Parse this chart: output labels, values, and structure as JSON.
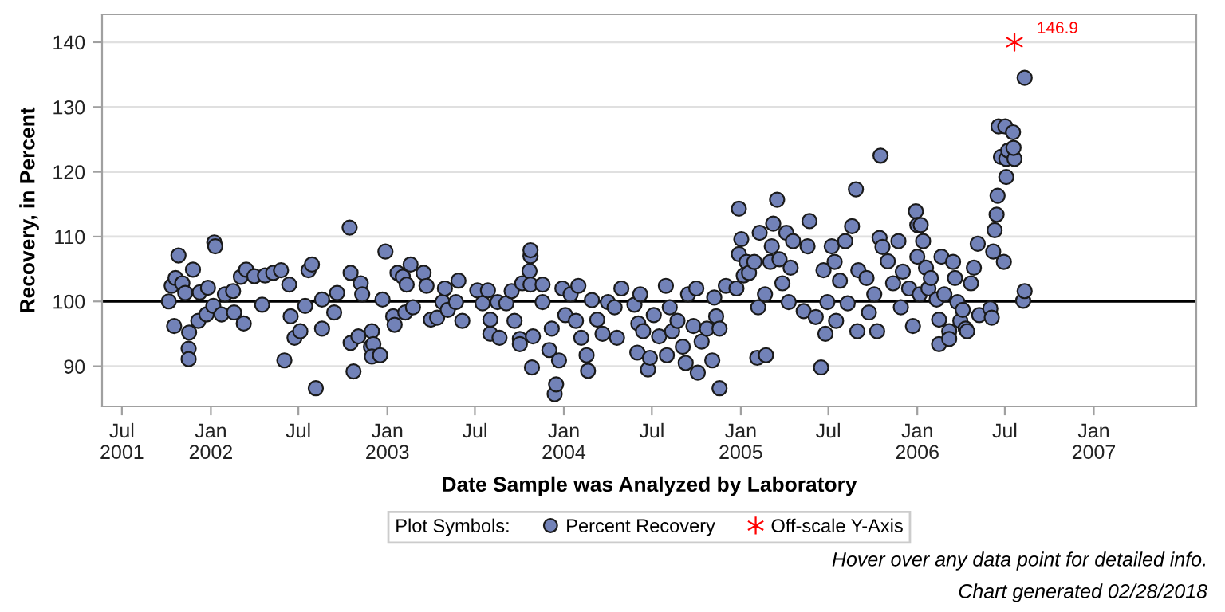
{
  "chart_data": {
    "type": "scatter",
    "xlabel": "Date Sample was Analyzed by Laboratory",
    "ylabel": "Recovery, in Percent",
    "legend_title": "Plot Symbols:",
    "xlim": [
      "2001-05-21",
      "2007-08-01"
    ],
    "ylim": [
      83.8,
      144.3
    ],
    "xticks": [
      {
        "value": "2001-07",
        "label": "Jul\n2001"
      },
      {
        "value": "2002-01",
        "label": "Jan\n2002"
      },
      {
        "value": "2002-07",
        "label": "Jul"
      },
      {
        "value": "2003-01",
        "label": "Jan\n2003"
      },
      {
        "value": "2003-07",
        "label": "Jul"
      },
      {
        "value": "2004-01",
        "label": "Jan\n2004"
      },
      {
        "value": "2004-07",
        "label": "Jul"
      },
      {
        "value": "2005-01",
        "label": "Jan\n2005"
      },
      {
        "value": "2005-07",
        "label": "Jul"
      },
      {
        "value": "2006-01",
        "label": "Jan\n2006"
      },
      {
        "value": "2006-07",
        "label": "Jul"
      },
      {
        "value": "2007-01",
        "label": "Jan\n2007"
      }
    ],
    "yticks": [
      90,
      100,
      110,
      120,
      130,
      140
    ],
    "grid": "y",
    "legend": "bottom",
    "ref_lines": [
      {
        "axis": "y",
        "value": 100,
        "color": "#000000"
      }
    ],
    "annotations": [
      {
        "text": "146.9",
        "x": "2006-07-21",
        "y": 140
      },
      "Hover over any data point for detailed info.",
      "Chart generated 02/28/2018"
    ],
    "series": [
      {
        "name": "Percent Recovery",
        "color": "#7282b8",
        "marker": "circle",
        "x": [
          "2001-10-06",
          "2001-10-12",
          "2001-10-17",
          "2001-10-20",
          "2001-10-26",
          "2001-11-03",
          "2001-11-09",
          "2001-11-17",
          "2001-11-16",
          "2001-11-16",
          "2001-11-25",
          "2001-12-06",
          "2001-12-09",
          "2001-12-23",
          "2001-12-26",
          "2002-01-08",
          "2002-01-10",
          "2002-01-06",
          "2002-01-23",
          "2002-01-30",
          "2002-02-18",
          "2002-02-16",
          "2002-03-04",
          "2002-03-10",
          "2002-03-15",
          "2002-04-01",
          "2002-04-17",
          "2002-04-23",
          "2002-05-10",
          "2002-05-26",
          "2002-06-02",
          "2002-06-12",
          "2002-06-15",
          "2002-06-23",
          "2002-07-05",
          "2002-07-15",
          "2002-07-22",
          "2002-07-29",
          "2002-08-06",
          "2002-08-19",
          "2002-08-19",
          "2002-09-13",
          "2002-09-19",
          "2002-10-15",
          "2002-10-17",
          "2002-10-17",
          "2002-10-23",
          "2002-11-02",
          "2002-11-07",
          "2002-11-10",
          "2002-11-28",
          "2002-11-30",
          "2002-12-03",
          "2002-11-30",
          "2002-12-17",
          "2002-12-28",
          "2002-12-22",
          "2003-01-13",
          "2003-01-16",
          "2003-01-22",
          "2003-02-02",
          "2003-02-07",
          "2003-02-10",
          "2003-02-18",
          "2003-02-23",
          "2003-03-17",
          "2003-03-23",
          "2003-04-01",
          "2003-04-14",
          "2003-04-25",
          "2003-04-30",
          "2003-05-06",
          "2003-05-23",
          "2003-05-28",
          "2003-06-05",
          "2003-07-06",
          "2003-07-17",
          "2003-07-28",
          "2003-08-02",
          "2003-08-02",
          "2003-08-17",
          "2003-08-21",
          "2003-09-04",
          "2003-09-15",
          "2003-09-21",
          "2003-10-02",
          "2003-10-07",
          "2003-10-02",
          "2003-10-24",
          "2003-10-24",
          "2003-10-22",
          "2003-10-24",
          "2003-10-27",
          "2003-10-29",
          "2003-11-18",
          "2003-11-18",
          "2003-12-02",
          "2003-12-07",
          "2003-12-13",
          "2003-12-16",
          "2003-12-22",
          "2003-12-29",
          "2004-01-04",
          "2004-01-15",
          "2004-01-26",
          "2004-01-31",
          "2004-02-06",
          "2004-02-17",
          "2004-02-20",
          "2004-02-28",
          "2004-03-10",
          "2004-03-21",
          "2004-04-01",
          "2004-04-15",
          "2004-04-20",
          "2004-04-29",
          "2004-05-26",
          "2004-06-01",
          "2004-06-03",
          "2004-06-23",
          "2004-06-07",
          "2004-06-13",
          "2004-06-27",
          "2004-07-05",
          "2004-07-16",
          "2004-07-30",
          "2004-08-01",
          "2004-08-07",
          "2004-08-12",
          "2004-08-23",
          "2004-09-03",
          "2004-09-09",
          "2004-09-14",
          "2004-09-25",
          "2004-10-01",
          "2004-10-04",
          "2004-10-12",
          "2004-10-23",
          "2004-11-03",
          "2004-11-07",
          "2004-11-11",
          "2004-11-18",
          "2004-11-18",
          "2004-12-01",
          "2004-12-23",
          "2004-12-28",
          "2004-12-28",
          "2005-01-02",
          "2005-01-07",
          "2005-01-13",
          "2005-01-18",
          "2005-01-29",
          "2005-02-04",
          "2005-02-06",
          "2005-02-09",
          "2005-02-22",
          "2005-02-20",
          "2005-03-03",
          "2005-03-09",
          "2005-03-06",
          "2005-03-17",
          "2005-03-22",
          "2005-03-28",
          "2005-04-05",
          "2005-04-10",
          "2005-04-14",
          "2005-04-19",
          "2005-05-11",
          "2005-05-19",
          "2005-05-23",
          "2005-06-05",
          "2005-06-16",
          "2005-06-21",
          "2005-06-25",
          "2005-06-29",
          "2005-07-08",
          "2005-07-14",
          "2005-07-17",
          "2005-07-25",
          "2005-08-05",
          "2005-08-10",
          "2005-08-19",
          "2005-08-27",
          "2005-08-30",
          "2005-09-01",
          "2005-09-18",
          "2005-09-23",
          "2005-10-04",
          "2005-10-10",
          "2005-10-15",
          "2005-10-17",
          "2005-10-21",
          "2005-11-01",
          "2005-11-12",
          "2005-11-23",
          "2005-11-28",
          "2005-12-02",
          "2005-12-15",
          "2005-12-23",
          "2005-12-29",
          "2006-01-01",
          "2006-01-01",
          "2006-01-06",
          "2006-01-08",
          "2006-01-13",
          "2006-01-19",
          "2006-01-24",
          "2006-01-29",
          "2006-02-10",
          "2006-02-15",
          "2006-02-15",
          "2006-02-20",
          "2006-02-26",
          "2006-03-08",
          "2006-03-08",
          "2006-03-16",
          "2006-03-20",
          "2006-03-25",
          "2006-03-31",
          "2006-04-05",
          "2006-04-11",
          "2006-04-14",
          "2006-04-22",
          "2006-04-28",
          "2006-05-06",
          "2006-05-09",
          "2006-06-01",
          "2006-06-04",
          "2006-06-07",
          "2006-06-10",
          "2006-06-14",
          "2006-06-16",
          "2006-06-18",
          "2006-06-23",
          "2006-06-29",
          "2006-07-02",
          "2006-07-04",
          "2006-07-04",
          "2006-07-08",
          "2006-07-18",
          "2006-07-21",
          "2006-07-19",
          "2006-08-08",
          "2006-08-11",
          "2006-08-11"
        ],
        "values": [
          100.0,
          102.4,
          96.2,
          103.6,
          107.1,
          102.8,
          101.3,
          95.2,
          92.7,
          91.1,
          104.9,
          97.0,
          101.4,
          98.0,
          102.1,
          109.1,
          108.5,
          99.3,
          98.0,
          101.1,
          98.3,
          101.6,
          103.8,
          96.6,
          104.9,
          103.9,
          99.5,
          104.0,
          104.4,
          104.8,
          90.9,
          102.6,
          97.7,
          94.4,
          95.4,
          99.3,
          104.8,
          105.7,
          86.6,
          95.8,
          100.3,
          98.3,
          101.3,
          111.4,
          104.4,
          93.6,
          89.2,
          94.6,
          102.8,
          101.1,
          93.0,
          95.4,
          93.4,
          91.5,
          91.7,
          107.7,
          100.3,
          97.7,
          96.4,
          104.4,
          103.8,
          98.3,
          102.6,
          105.7,
          99.1,
          104.4,
          102.4,
          97.2,
          97.5,
          99.9,
          102.0,
          98.7,
          99.9,
          103.2,
          97.0,
          101.7,
          99.7,
          101.7,
          97.2,
          95.0,
          99.9,
          94.4,
          99.7,
          101.6,
          97.0,
          94.2,
          102.8,
          93.4,
          107.0,
          107.9,
          104.7,
          102.6,
          89.8,
          94.6,
          102.6,
          99.9,
          92.5,
          95.8,
          85.7,
          87.2,
          90.9,
          102.0,
          97.9,
          101.1,
          97.0,
          102.4,
          94.4,
          91.7,
          89.3,
          100.2,
          97.2,
          95.0,
          99.9,
          99.1,
          94.4,
          102.0,
          99.5,
          92.1,
          96.6,
          89.5,
          101.1,
          95.4,
          91.3,
          97.9,
          94.6,
          102.4,
          91.7,
          99.1,
          95.4,
          97.0,
          93.0,
          90.5,
          101.1,
          96.2,
          102.0,
          89.0,
          93.8,
          95.8,
          90.9,
          100.6,
          97.7,
          86.6,
          95.8,
          102.4,
          102.0,
          114.3,
          107.3,
          109.6,
          104.0,
          106.1,
          104.4,
          106.1,
          91.3,
          99.1,
          110.6,
          91.7,
          101.1,
          106.1,
          112.0,
          108.5,
          115.7,
          106.5,
          102.8,
          110.6,
          99.9,
          105.2,
          109.3,
          98.5,
          108.5,
          112.4,
          97.6,
          89.8,
          104.8,
          95.0,
          99.9,
          108.5,
          106.1,
          97.0,
          103.2,
          109.3,
          99.7,
          111.6,
          117.3,
          95.4,
          104.8,
          103.6,
          98.3,
          101.1,
          95.4,
          109.8,
          122.5,
          108.4,
          106.2,
          102.8,
          109.3,
          99.1,
          104.6,
          102.0,
          96.2,
          113.9,
          111.8,
          106.9,
          101.1,
          111.8,
          109.3,
          105.2,
          102.0,
          103.6,
          100.3,
          97.2,
          93.4,
          106.9,
          101.1,
          95.4,
          94.2,
          106.1,
          103.6,
          99.9,
          97.0,
          98.7,
          95.8,
          95.4,
          102.8,
          105.2,
          108.9,
          97.9,
          98.9,
          97.5,
          107.7,
          111.0,
          113.4,
          116.3,
          127.0,
          122.3,
          106.1,
          127.0,
          119.2,
          122.0,
          123.3,
          126.1,
          122.0,
          123.7,
          100.1,
          101.6,
          134.5
        ]
      },
      {
        "name": "Off-scale Y-Axis",
        "color": "#ff0000",
        "marker": "cross",
        "x": [
          "2006-07-21"
        ],
        "values": [
          140
        ]
      }
    ]
  }
}
